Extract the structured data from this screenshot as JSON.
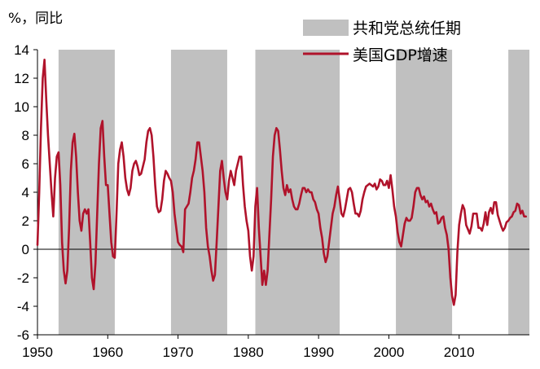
{
  "chart_data": {
    "type": "line",
    "unit_label": "%，同比",
    "xlim": [
      1950,
      2020
    ],
    "ylim": [
      -6,
      14
    ],
    "x_ticks": [
      1950,
      1960,
      1970,
      1980,
      1990,
      2000,
      2010
    ],
    "y_ticks": [
      -6,
      -4,
      -2,
      0,
      2,
      4,
      6,
      8,
      10,
      12,
      14
    ],
    "grid": false,
    "legend_position": "top-right",
    "legend": {
      "band_label": "共和党总统任期",
      "line_label": "美国GDP增速"
    },
    "colors": {
      "line": "#b0132b",
      "band": "#c0c0c0",
      "axis": "#000000"
    },
    "shaded_periods": [
      [
        1953.0,
        1961.0
      ],
      [
        1969.0,
        1977.0
      ],
      [
        1981.0,
        1993.0
      ],
      [
        2001.0,
        2009.0
      ],
      [
        2017.0,
        2020.0
      ]
    ],
    "series": [
      {
        "name": "美国GDP增速",
        "points": [
          [
            1950.0,
            0.3
          ],
          [
            1950.25,
            4.0
          ],
          [
            1950.5,
            8.5
          ],
          [
            1950.75,
            12.0
          ],
          [
            1951.0,
            13.3
          ],
          [
            1951.25,
            10.5
          ],
          [
            1951.5,
            8.0
          ],
          [
            1951.75,
            6.0
          ],
          [
            1952.0,
            4.0
          ],
          [
            1952.25,
            2.3
          ],
          [
            1952.5,
            5.0
          ],
          [
            1952.75,
            6.5
          ],
          [
            1953.0,
            6.8
          ],
          [
            1953.25,
            4.5
          ],
          [
            1953.5,
            0.5
          ],
          [
            1953.75,
            -1.5
          ],
          [
            1954.0,
            -2.4
          ],
          [
            1954.25,
            -1.5
          ],
          [
            1954.5,
            1.5
          ],
          [
            1954.75,
            5.5
          ],
          [
            1955.0,
            7.5
          ],
          [
            1955.25,
            8.1
          ],
          [
            1955.5,
            6.5
          ],
          [
            1955.75,
            4.0
          ],
          [
            1956.0,
            2.0
          ],
          [
            1956.25,
            1.3
          ],
          [
            1956.5,
            2.5
          ],
          [
            1956.75,
            2.8
          ],
          [
            1957.0,
            2.5
          ],
          [
            1957.25,
            2.8
          ],
          [
            1957.5,
            0.5
          ],
          [
            1957.75,
            -2.0
          ],
          [
            1958.0,
            -2.8
          ],
          [
            1958.25,
            -1.0
          ],
          [
            1958.5,
            2.5
          ],
          [
            1958.75,
            6.0
          ],
          [
            1959.0,
            8.5
          ],
          [
            1959.25,
            9.0
          ],
          [
            1959.5,
            6.5
          ],
          [
            1959.75,
            4.5
          ],
          [
            1960.0,
            4.5
          ],
          [
            1960.25,
            2.5
          ],
          [
            1960.5,
            0.5
          ],
          [
            1960.75,
            -0.5
          ],
          [
            1961.0,
            -0.6
          ],
          [
            1961.25,
            2.5
          ],
          [
            1961.5,
            6.0
          ],
          [
            1961.75,
            7.0
          ],
          [
            1962.0,
            7.5
          ],
          [
            1962.25,
            6.5
          ],
          [
            1962.5,
            5.0
          ],
          [
            1962.75,
            4.2
          ],
          [
            1963.0,
            3.8
          ],
          [
            1963.25,
            4.3
          ],
          [
            1963.5,
            5.5
          ],
          [
            1963.75,
            6.0
          ],
          [
            1964.0,
            6.2
          ],
          [
            1964.25,
            5.8
          ],
          [
            1964.5,
            5.2
          ],
          [
            1964.75,
            5.3
          ],
          [
            1965.0,
            5.8
          ],
          [
            1965.25,
            6.3
          ],
          [
            1965.5,
            7.5
          ],
          [
            1965.75,
            8.3
          ],
          [
            1966.0,
            8.5
          ],
          [
            1966.25,
            8.0
          ],
          [
            1966.5,
            6.5
          ],
          [
            1966.75,
            4.5
          ],
          [
            1967.0,
            3.0
          ],
          [
            1967.25,
            2.6
          ],
          [
            1967.5,
            2.7
          ],
          [
            1967.75,
            3.5
          ],
          [
            1968.0,
            4.8
          ],
          [
            1968.25,
            5.5
          ],
          [
            1968.5,
            5.3
          ],
          [
            1968.75,
            5.0
          ],
          [
            1969.0,
            4.8
          ],
          [
            1969.25,
            4.0
          ],
          [
            1969.5,
            2.5
          ],
          [
            1969.75,
            1.5
          ],
          [
            1970.0,
            0.5
          ],
          [
            1970.25,
            0.3
          ],
          [
            1970.5,
            0.2
          ],
          [
            1970.75,
            -0.2
          ],
          [
            1971.0,
            2.8
          ],
          [
            1971.25,
            3.0
          ],
          [
            1971.5,
            3.2
          ],
          [
            1971.75,
            4.0
          ],
          [
            1972.0,
            5.0
          ],
          [
            1972.25,
            5.5
          ],
          [
            1972.5,
            6.3
          ],
          [
            1972.75,
            7.5
          ],
          [
            1973.0,
            7.5
          ],
          [
            1973.25,
            6.5
          ],
          [
            1973.5,
            5.5
          ],
          [
            1973.75,
            4.0
          ],
          [
            1974.0,
            1.5
          ],
          [
            1974.25,
            0.2
          ],
          [
            1974.5,
            -0.5
          ],
          [
            1974.75,
            -1.5
          ],
          [
            1975.0,
            -2.2
          ],
          [
            1975.25,
            -1.8
          ],
          [
            1975.5,
            0.5
          ],
          [
            1975.75,
            3.0
          ],
          [
            1976.0,
            5.5
          ],
          [
            1976.25,
            6.2
          ],
          [
            1976.5,
            5.0
          ],
          [
            1976.75,
            4.0
          ],
          [
            1977.0,
            3.5
          ],
          [
            1977.25,
            4.8
          ],
          [
            1977.5,
            5.5
          ],
          [
            1977.75,
            5.0
          ],
          [
            1978.0,
            4.5
          ],
          [
            1978.25,
            5.5
          ],
          [
            1978.5,
            6.0
          ],
          [
            1978.75,
            6.5
          ],
          [
            1979.0,
            6.5
          ],
          [
            1979.25,
            4.5
          ],
          [
            1979.5,
            3.0
          ],
          [
            1979.75,
            2.0
          ],
          [
            1980.0,
            1.3
          ],
          [
            1980.25,
            -0.5
          ],
          [
            1980.5,
            -1.5
          ],
          [
            1980.75,
            -0.5
          ],
          [
            1981.0,
            3.0
          ],
          [
            1981.25,
            4.3
          ],
          [
            1981.5,
            1.5
          ],
          [
            1981.75,
            -0.5
          ],
          [
            1982.0,
            -2.5
          ],
          [
            1982.25,
            -1.5
          ],
          [
            1982.5,
            -2.5
          ],
          [
            1982.75,
            -1.5
          ],
          [
            1983.0,
            1.0
          ],
          [
            1983.25,
            3.5
          ],
          [
            1983.5,
            6.5
          ],
          [
            1983.75,
            8.0
          ],
          [
            1984.0,
            8.5
          ],
          [
            1984.25,
            8.3
          ],
          [
            1984.5,
            7.0
          ],
          [
            1984.75,
            5.5
          ],
          [
            1985.0,
            4.3
          ],
          [
            1985.25,
            3.8
          ],
          [
            1985.5,
            4.5
          ],
          [
            1985.75,
            4.0
          ],
          [
            1986.0,
            4.2
          ],
          [
            1986.25,
            3.5
          ],
          [
            1986.5,
            3.0
          ],
          [
            1986.75,
            2.8
          ],
          [
            1987.0,
            2.8
          ],
          [
            1987.25,
            3.2
          ],
          [
            1987.5,
            3.8
          ],
          [
            1987.75,
            4.3
          ],
          [
            1988.0,
            4.3
          ],
          [
            1988.25,
            4.0
          ],
          [
            1988.5,
            4.2
          ],
          [
            1988.75,
            4.0
          ],
          [
            1989.0,
            4.0
          ],
          [
            1989.25,
            3.5
          ],
          [
            1989.5,
            3.3
          ],
          [
            1989.75,
            2.8
          ],
          [
            1990.0,
            2.5
          ],
          [
            1990.25,
            1.5
          ],
          [
            1990.5,
            0.8
          ],
          [
            1990.75,
            -0.3
          ],
          [
            1991.0,
            -0.9
          ],
          [
            1991.25,
            -0.5
          ],
          [
            1991.5,
            0.5
          ],
          [
            1991.75,
            1.5
          ],
          [
            1992.0,
            2.5
          ],
          [
            1992.25,
            3.0
          ],
          [
            1992.5,
            3.8
          ],
          [
            1992.75,
            4.4
          ],
          [
            1993.0,
            3.5
          ],
          [
            1993.25,
            2.5
          ],
          [
            1993.5,
            2.3
          ],
          [
            1993.75,
            2.8
          ],
          [
            1994.0,
            3.5
          ],
          [
            1994.25,
            4.2
          ],
          [
            1994.5,
            4.3
          ],
          [
            1994.75,
            4.0
          ],
          [
            1995.0,
            3.2
          ],
          [
            1995.25,
            2.5
          ],
          [
            1995.5,
            2.5
          ],
          [
            1995.75,
            2.3
          ],
          [
            1996.0,
            2.7
          ],
          [
            1996.25,
            3.5
          ],
          [
            1996.5,
            4.0
          ],
          [
            1996.75,
            4.4
          ],
          [
            1997.0,
            4.5
          ],
          [
            1997.25,
            4.6
          ],
          [
            1997.5,
            4.5
          ],
          [
            1997.75,
            4.4
          ],
          [
            1998.0,
            4.6
          ],
          [
            1998.25,
            4.2
          ],
          [
            1998.5,
            4.4
          ],
          [
            1998.75,
            4.9
          ],
          [
            1999.0,
            4.8
          ],
          [
            1999.25,
            4.5
          ],
          [
            1999.5,
            4.5
          ],
          [
            1999.75,
            4.8
          ],
          [
            2000.0,
            4.3
          ],
          [
            2000.25,
            5.2
          ],
          [
            2000.5,
            4.2
          ],
          [
            2000.75,
            3.0
          ],
          [
            2001.0,
            2.3
          ],
          [
            2001.25,
            1.2
          ],
          [
            2001.5,
            0.5
          ],
          [
            2001.75,
            0.2
          ],
          [
            2002.0,
            1.0
          ],
          [
            2002.25,
            1.8
          ],
          [
            2002.5,
            2.2
          ],
          [
            2002.75,
            2.0
          ],
          [
            2003.0,
            2.0
          ],
          [
            2003.25,
            2.2
          ],
          [
            2003.5,
            3.0
          ],
          [
            2003.75,
            4.0
          ],
          [
            2004.0,
            4.3
          ],
          [
            2004.25,
            4.3
          ],
          [
            2004.5,
            3.8
          ],
          [
            2004.75,
            3.5
          ],
          [
            2005.0,
            3.7
          ],
          [
            2005.25,
            3.3
          ],
          [
            2005.5,
            3.4
          ],
          [
            2005.75,
            3.0
          ],
          [
            2006.0,
            3.2
          ],
          [
            2006.25,
            2.8
          ],
          [
            2006.5,
            2.5
          ],
          [
            2006.75,
            2.6
          ],
          [
            2007.0,
            1.8
          ],
          [
            2007.25,
            1.9
          ],
          [
            2007.5,
            2.2
          ],
          [
            2007.75,
            2.3
          ],
          [
            2008.0,
            1.5
          ],
          [
            2008.25,
            1.0
          ],
          [
            2008.5,
            0.0
          ],
          [
            2008.75,
            -2.0
          ],
          [
            2009.0,
            -3.3
          ],
          [
            2009.25,
            -3.9
          ],
          [
            2009.5,
            -3.2
          ],
          [
            2009.75,
            -0.2
          ],
          [
            2010.0,
            1.7
          ],
          [
            2010.25,
            2.5
          ],
          [
            2010.5,
            3.1
          ],
          [
            2010.75,
            2.8
          ],
          [
            2011.0,
            1.7
          ],
          [
            2011.25,
            1.4
          ],
          [
            2011.5,
            1.1
          ],
          [
            2011.75,
            1.6
          ],
          [
            2012.0,
            2.5
          ],
          [
            2012.25,
            2.5
          ],
          [
            2012.5,
            2.5
          ],
          [
            2012.75,
            1.5
          ],
          [
            2013.0,
            1.5
          ],
          [
            2013.25,
            1.3
          ],
          [
            2013.5,
            1.8
          ],
          [
            2013.75,
            2.6
          ],
          [
            2014.0,
            1.7
          ],
          [
            2014.25,
            2.6
          ],
          [
            2014.5,
            2.9
          ],
          [
            2014.75,
            2.5
          ],
          [
            2015.0,
            3.3
          ],
          [
            2015.25,
            3.3
          ],
          [
            2015.5,
            2.4
          ],
          [
            2015.75,
            2.0
          ],
          [
            2016.0,
            1.6
          ],
          [
            2016.25,
            1.3
          ],
          [
            2016.5,
            1.5
          ],
          [
            2016.75,
            1.9
          ],
          [
            2017.0,
            2.0
          ],
          [
            2017.25,
            2.2
          ],
          [
            2017.5,
            2.3
          ],
          [
            2017.75,
            2.6
          ],
          [
            2018.0,
            2.7
          ],
          [
            2018.25,
            3.2
          ],
          [
            2018.5,
            3.1
          ],
          [
            2018.75,
            2.5
          ],
          [
            2019.0,
            2.7
          ],
          [
            2019.25,
            2.3
          ],
          [
            2019.5,
            2.3
          ]
        ]
      }
    ]
  }
}
